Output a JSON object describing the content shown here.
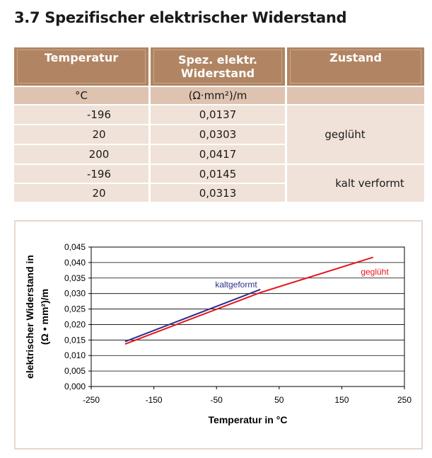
{
  "title": "3.7 Spezifischer elektrischer Widerstand",
  "table": {
    "headers": {
      "temperatur": "Temperatur",
      "widerstand_line1": "Spez. elektr.",
      "widerstand_line2": "Widerstand",
      "zustand": "Zustand"
    },
    "units": {
      "temperatur": "°C",
      "widerstand": "(Ω·mm²)/m",
      "zustand": ""
    },
    "rows": [
      {
        "temperatur": "-196",
        "widerstand": "0,0137"
      },
      {
        "temperatur": "20",
        "widerstand": "0,0303"
      },
      {
        "temperatur": "200",
        "widerstand": "0,0417"
      },
      {
        "temperatur": "-196",
        "widerstand": "0,0145"
      },
      {
        "temperatur": "20",
        "widerstand": "0,0313"
      }
    ],
    "zustand_groups": [
      "geglüht",
      "kalt verformt"
    ]
  },
  "colors": {
    "header_bg": "#b18563",
    "unit_bg": "#dec3b1",
    "body_bg": "#f0e2d8",
    "gegluht": "#e8141b",
    "kaltgeformt": "#2b2f8c"
  },
  "chart_data": {
    "type": "line",
    "xlabel": "Temperatur in °C",
    "ylabel_line1": "elektrischer Widerstand in",
    "ylabel_line2": "(Ω • mm²)/m",
    "xlim": [
      -250,
      250
    ],
    "ylim": [
      0,
      0.045
    ],
    "x_ticks": [
      "-250",
      "-150",
      "-50",
      "50",
      "150",
      "250"
    ],
    "y_ticks": [
      "0,000",
      "0,005",
      "0,010",
      "0,015",
      "0,020",
      "0,025",
      "0,030",
      "0,035",
      "0,040",
      "0,045"
    ],
    "grid": true,
    "series": [
      {
        "name": "geglüht",
        "x": [
          -196,
          20,
          200
        ],
        "y": [
          0.0137,
          0.0303,
          0.0417
        ]
      },
      {
        "name": "kaltgeformt",
        "x": [
          -196,
          20
        ],
        "y": [
          0.0145,
          0.0313
        ]
      }
    ]
  }
}
